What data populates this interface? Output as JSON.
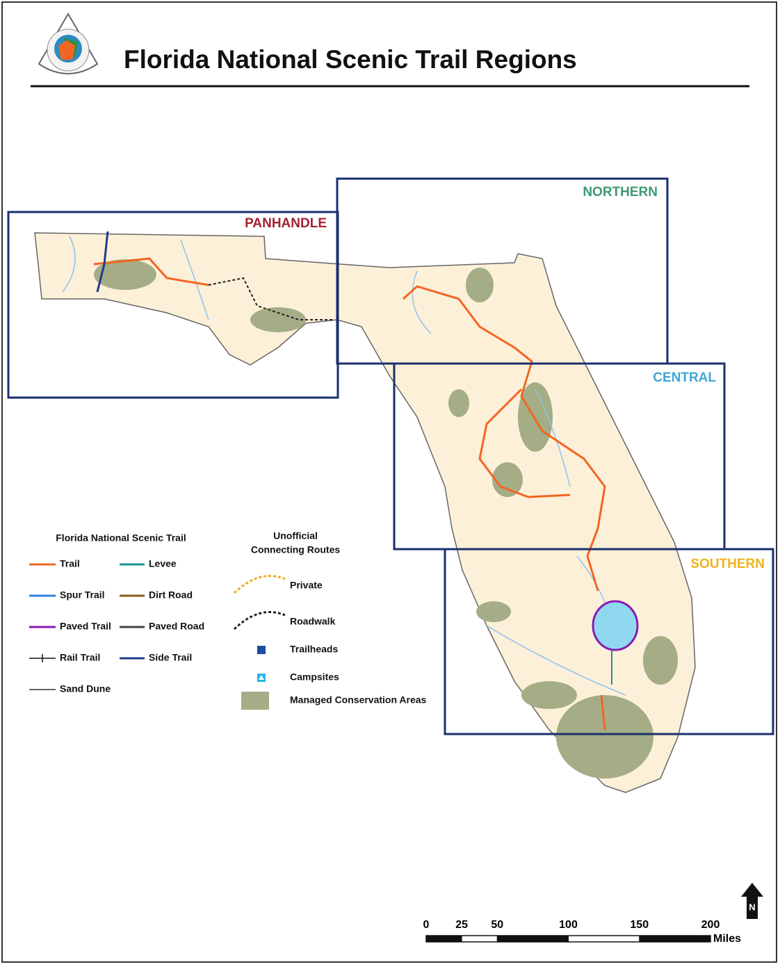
{
  "header": {
    "title": "Florida National Scenic Trail Regions"
  },
  "regions": [
    {
      "name": "PANHANDLE",
      "color": "#a3212f"
    },
    {
      "name": "NORTHERN",
      "color": "#3d9a72"
    },
    {
      "name": "CENTRAL",
      "color": "#3fa7d6"
    },
    {
      "name": "SOUTHERN",
      "color": "#f0b21e"
    }
  ],
  "legend": {
    "title": "Florida National Scenic Trail",
    "items": [
      {
        "label": "Trail",
        "color": "#f26522",
        "style": "solid"
      },
      {
        "label": "Levee",
        "color": "#16958f",
        "style": "solid"
      },
      {
        "label": "Spur Trail",
        "color": "#2f7fe0",
        "style": "solid"
      },
      {
        "label": "Dirt Road",
        "color": "#8b5a1a",
        "style": "solid"
      },
      {
        "label": "Paved Trail",
        "color": "#8a1ab0",
        "style": "solid"
      },
      {
        "label": "Paved Road",
        "color": "#444444",
        "style": "solid"
      },
      {
        "label": "Rail Trail",
        "color": "#111111",
        "style": "rail"
      },
      {
        "label": "Side Trail",
        "color": "#1f3b8a",
        "style": "solid"
      },
      {
        "label": "Sand Dune",
        "color": "#333333",
        "style": "thin"
      }
    ]
  },
  "unofficial": {
    "title": [
      "Unofficial",
      "Connecting Routes"
    ],
    "items": [
      {
        "label": "Private",
        "color": "#f5a623",
        "style": "dashed"
      },
      {
        "label": "Roadwalk",
        "color": "#222222",
        "style": "dashed"
      },
      {
        "label": "Trailheads",
        "color": "#1a4fa0",
        "style": "trailhead"
      },
      {
        "label": "Campsites",
        "color": "#29b6e8",
        "style": "campsite"
      },
      {
        "label": "Managed Conservation Areas",
        "color": "#a4ad85",
        "style": "area"
      }
    ]
  },
  "scale": {
    "ticks": [
      0,
      25,
      50,
      100,
      150,
      200
    ],
    "unit": "Miles"
  },
  "north": "N"
}
